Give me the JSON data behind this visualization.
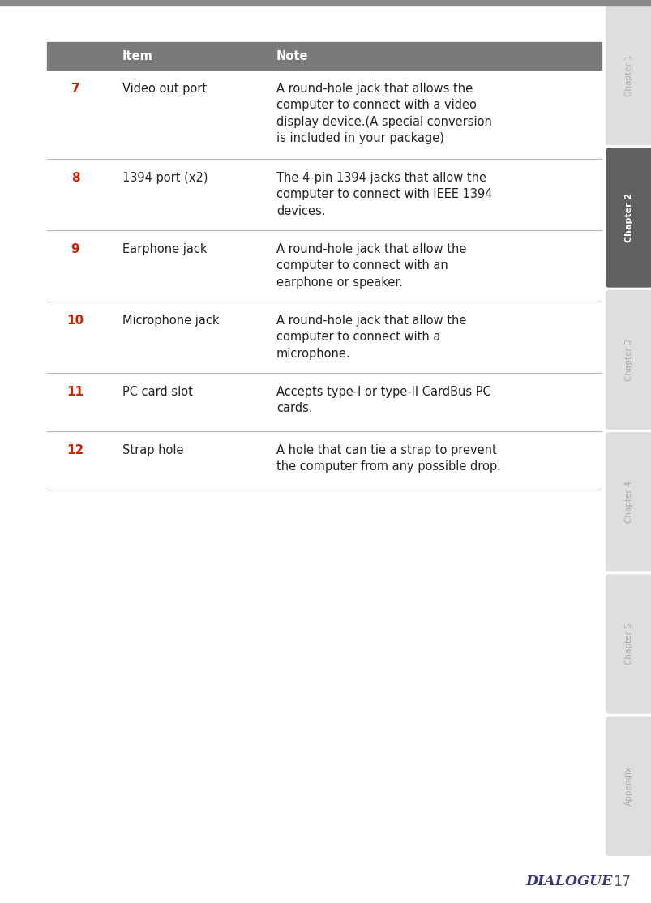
{
  "page_bg": "#ffffff",
  "top_bar_color": "#888888",
  "header_bg": "#7a7a7a",
  "header_text_color": "#ffffff",
  "header_item": "Item",
  "header_note": "Note",
  "divider_color": "#bbbbbb",
  "number_color": "#cc2200",
  "text_color": "#222222",
  "rows": [
    {
      "num": "7",
      "item": "Video out port",
      "note": "A round-hole jack that allows the\ncomputer to connect with a video\ndisplay device.(A special conversion\nis included in your package)"
    },
    {
      "num": "8",
      "item": "1394 port (x2)",
      "note": "The 4-pin 1394 jacks that allow the\ncomputer to connect with IEEE 1394\ndevices."
    },
    {
      "num": "9",
      "item": "Earphone jack",
      "note": "A round-hole jack that allow the\ncomputer to connect with an\nearphone or speaker."
    },
    {
      "num": "10",
      "item": "Microphone jack",
      "note": "A round-hole jack that allow the\ncomputer to connect with a\nmicrophone."
    },
    {
      "num": "11",
      "item": "PC card slot",
      "note": "Accepts type-I or type-II CardBus PC\ncards."
    },
    {
      "num": "12",
      "item": "Strap hole",
      "note": "A hole that can tie a strap to prevent\nthe computer from any possible drop."
    }
  ],
  "sidebar_tabs": [
    {
      "label": "Chapter 1",
      "active": false
    },
    {
      "label": "Chapter 2",
      "active": true
    },
    {
      "label": "Chapter 3",
      "active": false
    },
    {
      "label": "Chapter 4",
      "active": false
    },
    {
      "label": "Chapter 5",
      "active": false
    },
    {
      "label": "Appendix",
      "active": false
    }
  ],
  "sidebar_active_color": "#606060",
  "sidebar_inactive_color": "#dedede",
  "sidebar_text_active": "#ffffff",
  "sidebar_text_inactive": "#aaaaaa",
  "footer_page": "17",
  "footer_logo": "DIALOGUE",
  "footer_logo_color": "#3a3a7a",
  "footer_page_color": "#555555"
}
